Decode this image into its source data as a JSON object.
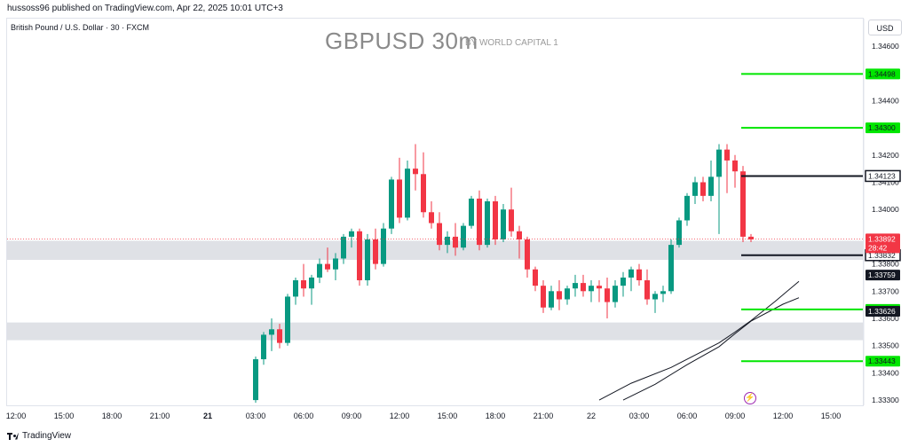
{
  "header": {
    "publisher": "hussoss96 published on TradingView.com, Apr 22, 2025 10:01 UTC+3",
    "symbol": "British Pound / U.S. Dollar · 30 · FXCM",
    "currency": "USD"
  },
  "footer": {
    "brand": "TradingView"
  },
  "chart_data": {
    "type": "candlestick",
    "title": "GBPUSD 30m",
    "subtitle": "BY WORLD CAPITAL 1",
    "ylim": [
      1.333,
      1.3465
    ],
    "y_ticks": [
      "1.34600",
      "1.34500",
      "1.34400",
      "1.34300",
      "1.34200",
      "1.34100",
      "1.34000",
      "1.33900",
      "1.33800",
      "1.33700",
      "1.33600",
      "1.33500",
      "1.33400",
      "1.33300"
    ],
    "x_ticks": [
      {
        "label": "12:00",
        "t": -72
      },
      {
        "label": "15:00",
        "t": -66
      },
      {
        "label": "18:00",
        "t": -60
      },
      {
        "label": "21:00",
        "t": -54
      },
      {
        "label": "21",
        "t": -48,
        "bold": true
      },
      {
        "label": "03:00",
        "t": -42
      },
      {
        "label": "06:00",
        "t": -36
      },
      {
        "label": "09:00",
        "t": -30
      },
      {
        "label": "12:00",
        "t": -24
      },
      {
        "label": "15:00",
        "t": -18
      },
      {
        "label": "18:00",
        "t": -12
      },
      {
        "label": "21:00",
        "t": -6
      },
      {
        "label": "22",
        "t": 0
      },
      {
        "label": "03:00",
        "t": 6
      },
      {
        "label": "06:00",
        "t": 12
      },
      {
        "label": "09:00",
        "t": 18
      },
      {
        "label": "12:00",
        "t": 24
      },
      {
        "label": "15:00",
        "t": 30
      }
    ],
    "candles": [
      [
        -42,
        1.333,
        1.3346,
        1.3329,
        1.3345
      ],
      [
        -41,
        1.3345,
        1.3355,
        1.3343,
        1.3354
      ],
      [
        -40,
        1.3354,
        1.336,
        1.3348,
        1.3356
      ],
      [
        -39,
        1.3356,
        1.3358,
        1.3349,
        1.3351
      ],
      [
        -38,
        1.3351,
        1.3369,
        1.335,
        1.3368
      ],
      [
        -37,
        1.3368,
        1.3375,
        1.3365,
        1.3374
      ],
      [
        -36,
        1.3374,
        1.338,
        1.3368,
        1.3371
      ],
      [
        -35,
        1.3371,
        1.3376,
        1.3365,
        1.3375
      ],
      [
        -34,
        1.3375,
        1.3382,
        1.3373,
        1.338
      ],
      [
        -33,
        1.338,
        1.3386,
        1.3377,
        1.3378
      ],
      [
        -32,
        1.3378,
        1.3384,
        1.3374,
        1.3382
      ],
      [
        -31,
        1.3382,
        1.3391,
        1.338,
        1.339
      ],
      [
        -30,
        1.339,
        1.3393,
        1.3386,
        1.3392
      ],
      [
        -29,
        1.3392,
        1.3393,
        1.3372,
        1.3374
      ],
      [
        -28,
        1.3374,
        1.3391,
        1.3372,
        1.3389
      ],
      [
        -27,
        1.3389,
        1.3393,
        1.3378,
        1.338
      ],
      [
        -26,
        1.338,
        1.3395,
        1.3379,
        1.3393
      ],
      [
        -25,
        1.3393,
        1.3412,
        1.3391,
        1.3411
      ],
      [
        -24,
        1.3411,
        1.3419,
        1.3395,
        1.3397
      ],
      [
        -23,
        1.3397,
        1.3418,
        1.3396,
        1.3415
      ],
      [
        -22,
        1.3415,
        1.3424,
        1.3407,
        1.3413
      ],
      [
        -21,
        1.3413,
        1.3421,
        1.3397,
        1.3399
      ],
      [
        -20,
        1.3399,
        1.3403,
        1.3393,
        1.3395
      ],
      [
        -19,
        1.3395,
        1.3399,
        1.3385,
        1.3387
      ],
      [
        -18,
        1.3387,
        1.3392,
        1.3384,
        1.339
      ],
      [
        -17,
        1.339,
        1.3395,
        1.3383,
        1.3386
      ],
      [
        -16,
        1.3386,
        1.3395,
        1.3385,
        1.3394
      ],
      [
        -15,
        1.3394,
        1.3405,
        1.3393,
        1.3404
      ],
      [
        -14,
        1.3404,
        1.3407,
        1.3385,
        1.3387
      ],
      [
        -13,
        1.3387,
        1.3404,
        1.3386,
        1.3403
      ],
      [
        -12,
        1.3403,
        1.3405,
        1.3387,
        1.3389
      ],
      [
        -11,
        1.3389,
        1.3402,
        1.3388,
        1.34
      ],
      [
        -10,
        1.34,
        1.3408,
        1.339,
        1.3392
      ],
      [
        -9,
        1.3392,
        1.3394,
        1.3382,
        1.3389
      ],
      [
        -8,
        1.3389,
        1.339,
        1.3375,
        1.3378
      ],
      [
        -7,
        1.3378,
        1.3379,
        1.337,
        1.3372
      ],
      [
        -6,
        1.3372,
        1.3374,
        1.3362,
        1.3364
      ],
      [
        -5,
        1.3364,
        1.3372,
        1.3363,
        1.337
      ],
      [
        -4,
        1.337,
        1.3374,
        1.3363,
        1.3367
      ],
      [
        -3,
        1.3367,
        1.3372,
        1.3365,
        1.3371
      ],
      [
        -2,
        1.3371,
        1.3376,
        1.3368,
        1.3373
      ],
      [
        -1,
        1.3373,
        1.3376,
        1.3368,
        1.337
      ],
      [
        0,
        1.337,
        1.3374,
        1.3366,
        1.3372
      ],
      [
        1,
        1.3372,
        1.3374,
        1.3366,
        1.3371
      ],
      [
        2,
        1.3371,
        1.3375,
        1.336,
        1.3366
      ],
      [
        3,
        1.3366,
        1.3374,
        1.3364,
        1.3372
      ],
      [
        4,
        1.3372,
        1.3377,
        1.3368,
        1.3375
      ],
      [
        5,
        1.3375,
        1.3379,
        1.337,
        1.3378
      ],
      [
        6,
        1.3378,
        1.338,
        1.3372,
        1.3374
      ],
      [
        7,
        1.3374,
        1.3378,
        1.3365,
        1.3367
      ],
      [
        8,
        1.3367,
        1.337,
        1.3362,
        1.3369
      ],
      [
        9,
        1.3369,
        1.3372,
        1.3366,
        1.337
      ],
      [
        10,
        1.337,
        1.3389,
        1.3369,
        1.3387
      ],
      [
        11,
        1.3387,
        1.3397,
        1.3386,
        1.3396
      ],
      [
        12,
        1.3396,
        1.3406,
        1.3394,
        1.3405
      ],
      [
        13,
        1.3405,
        1.3412,
        1.3402,
        1.341
      ],
      [
        14,
        1.341,
        1.3412,
        1.3403,
        1.3405
      ],
      [
        15,
        1.3405,
        1.3418,
        1.3403,
        1.3412
      ],
      [
        16,
        1.3412,
        1.3424,
        1.3391,
        1.3422
      ],
      [
        17,
        1.3422,
        1.3424,
        1.3406,
        1.3418
      ],
      [
        18,
        1.3418,
        1.342,
        1.3408,
        1.3414
      ],
      [
        19,
        1.3414,
        1.3416,
        1.3388,
        1.339
      ],
      [
        20,
        1.339,
        1.3391,
        1.3388,
        1.3389
      ]
    ],
    "ma_lines": [
      {
        "points": [
          [
            1,
            1.333
          ],
          [
            5,
            1.33362
          ],
          [
            10,
            1.3342
          ],
          [
            16,
            1.3351
          ],
          [
            18,
            1.3355
          ],
          [
            20,
            1.33592
          ],
          [
            23,
            1.33662
          ],
          [
            26,
            1.33736
          ]
        ]
      },
      {
        "points": [
          [
            4,
            1.333
          ],
          [
            8,
            1.33358
          ],
          [
            12,
            1.3343
          ],
          [
            16,
            1.33496
          ],
          [
            18,
            1.33544
          ],
          [
            20,
            1.3359
          ],
          [
            24,
            1.33652
          ],
          [
            26,
            1.33676
          ]
        ]
      }
    ],
    "zones": [
      {
        "from": 1.33815,
        "to": 1.33885
      },
      {
        "from": 1.3352,
        "to": 1.33585
      }
    ],
    "levels": [
      {
        "value": 1.34498,
        "label": "1.34498",
        "color": "#00e600"
      },
      {
        "value": 1.343,
        "label": "1.34300",
        "color": "#00e600"
      },
      {
        "value": 1.34123,
        "label": "1.34123",
        "color": "#131722"
      },
      {
        "value": 1.33832,
        "label": "1.33832",
        "color": "#131722"
      },
      {
        "value": 1.33633,
        "label": "1.33633",
        "color": "#00e600"
      },
      {
        "value": 1.33443,
        "label": "1.33443",
        "color": "#00e600"
      }
    ],
    "ma_tags": [
      {
        "value": 1.33759,
        "label": "1.33759"
      },
      {
        "value": 1.33626,
        "label": "1.33626"
      }
    ],
    "current_price": {
      "value": 1.33892,
      "label": "1.33892",
      "countdown": "28:42",
      "color": "#f23645"
    },
    "up_color": "#089981",
    "down_color": "#f23645"
  }
}
